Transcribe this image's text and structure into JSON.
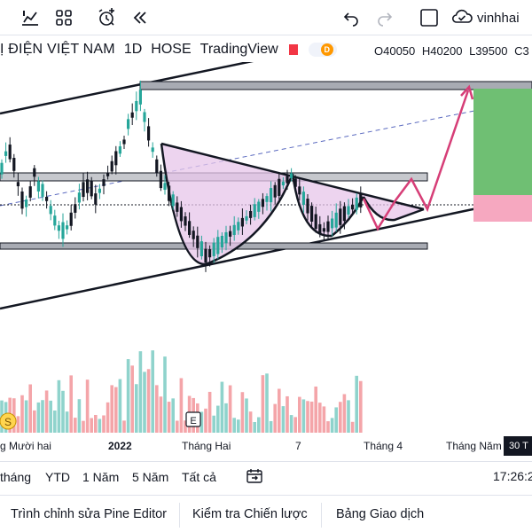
{
  "toolbar": {
    "icons": [
      "chart-type-icon",
      "layout-grid-icon",
      "alert-clock-icon",
      "replay-icon",
      "undo-icon",
      "redo-icon",
      "square-select-icon",
      "cloud-check-icon"
    ],
    "user_name": "vinhhai"
  },
  "legend": {
    "symbol": "Ị ĐIỆN VIỆT NAM",
    "interval": "1D",
    "exchange": "HOSE",
    "source": "TradingView",
    "dividend_badge": "D",
    "open": "O40050",
    "high": "H40200",
    "low": "L39500",
    "close": "C3"
  },
  "time_axis": {
    "labels": [
      "g Mười hai",
      "2022",
      "Tháng Hai",
      "7",
      "Tháng 4",
      "Tháng Năm"
    ],
    "current_badge": "30 T"
  },
  "chart_markers": {
    "split_marker": "S",
    "earnings_marker": "E"
  },
  "range_bar": {
    "ranges": [
      "tháng",
      "YTD",
      "1 Năm",
      "5 Năm",
      "Tất cả"
    ],
    "clock": "17:26:2"
  },
  "bottom_tabs": [
    "Trình chỉnh sửa Pine Editor",
    "Kiểm tra Chiến lược",
    "Bảng Giao dịch"
  ],
  "colors": {
    "up": "#26a69a",
    "down": "#131722",
    "volume_up": "#8fd3cc",
    "volume_down": "#f4a5a9",
    "pattern_fill": "#e7c6ea",
    "projection": "#d63e77",
    "target_zone": "#6fbf73",
    "stop_zone": "#f6a8c0"
  }
}
